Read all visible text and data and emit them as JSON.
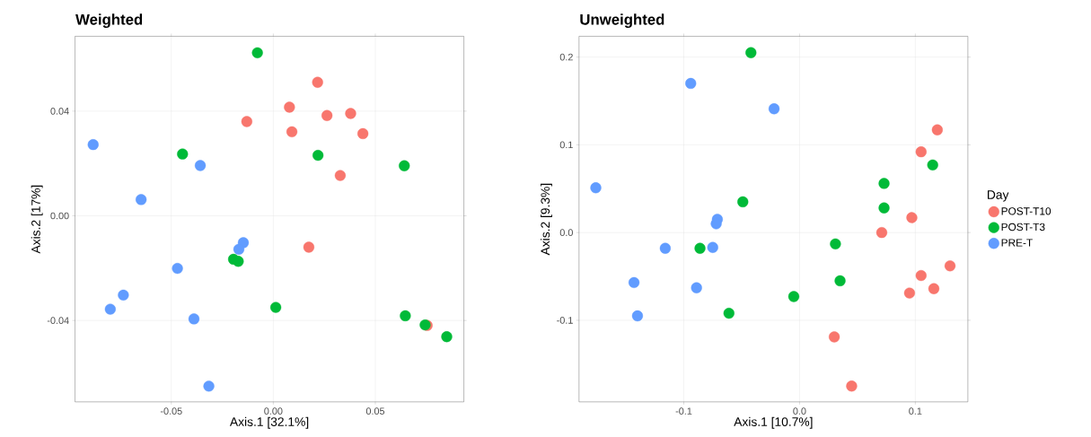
{
  "chart_data": [
    {
      "type": "scatter",
      "title": "Weighted",
      "xlabel": "Axis.1   [32.1%]",
      "ylabel": "Axis.2   [17%]",
      "marker": "circle",
      "grid": true,
      "legend": false,
      "xlim": [
        -0.0972,
        0.0934
      ],
      "ylim": [
        -0.0711,
        0.0686
      ],
      "xticks": [
        -0.05,
        {
          "value": 0,
          "label": "0.00"
        },
        0.05
      ],
      "yticks": [
        -0.04,
        {
          "value": 0,
          "label": "0.00"
        },
        0.04
      ],
      "series": [
        {
          "color": "#f8766d",
          "x": [
            0.0217,
            0.0079,
            -0.013,
            0.0263,
            0.0379,
            0.0091,
            0.0439,
            0.0328,
            0.0174,
            0.0754
          ],
          "values": [
            0.051,
            0.0415,
            0.036,
            0.0383,
            0.0391,
            0.0321,
            0.0314,
            0.0154,
            -0.012,
            -0.0419
          ]
        },
        {
          "color": "#00ba38",
          "x": [
            -0.0078,
            -0.0445,
            0.0219,
            0.0642,
            -0.0195,
            -0.0172,
            0.0012,
            0.0647,
            0.0744,
            0.085
          ],
          "values": [
            0.0623,
            0.0236,
            0.0231,
            0.0191,
            -0.0166,
            -0.0174,
            -0.035,
            -0.0382,
            -0.0417,
            -0.0462
          ]
        },
        {
          "color": "#619cff",
          "x": [
            -0.0883,
            -0.0358,
            -0.0648,
            -0.0147,
            -0.0169,
            -0.047,
            -0.0735,
            -0.0799,
            -0.0389,
            -0.0316
          ],
          "values": [
            0.0272,
            0.0192,
            0.0062,
            -0.0103,
            -0.0128,
            -0.0201,
            -0.0303,
            -0.0357,
            -0.0394,
            -0.0651
          ]
        }
      ]
    },
    {
      "type": "scatter",
      "title": "Unweighted",
      "xlabel": "Axis.1   [10.7%]",
      "ylabel": "Axis.2   [9.3%]",
      "legend_title": "Day",
      "marker": "circle",
      "grid": true,
      "legend": "right",
      "xlim": [
        -0.1905,
        0.1454
      ],
      "ylim": [
        -0.193,
        0.2237
      ],
      "xticks": [
        -0.1,
        {
          "value": 0,
          "label": "0.0"
        },
        0.1
      ],
      "yticks": [
        -0.1,
        {
          "value": 0,
          "label": "0.0"
        },
        0.1,
        0.2
      ],
      "series": [
        {
          "name": "POST-T10",
          "color": "#f8766d",
          "x": [
            0.119,
            0.105,
            0.097,
            0.071,
            0.13,
            0.105,
            0.116,
            0.095,
            0.03,
            0.045
          ],
          "values": [
            0.117,
            0.092,
            0.017,
            0.0,
            -0.038,
            -0.049,
            -0.064,
            -0.069,
            -0.119,
            -0.175
          ]
        },
        {
          "name": "POST-T3",
          "color": "#00ba38",
          "x": [
            -0.042,
            0.115,
            0.073,
            0.073,
            -0.049,
            -0.086,
            0.031,
            0.035,
            -0.005,
            -0.061
          ],
          "values": [
            0.205,
            0.077,
            0.056,
            0.028,
            0.035,
            -0.018,
            -0.013,
            -0.055,
            -0.073,
            -0.092
          ]
        },
        {
          "name": "PRE-T",
          "color": "#619cff",
          "x": [
            -0.094,
            -0.022,
            -0.176,
            -0.071,
            -0.072,
            -0.116,
            -0.075,
            -0.143,
            -0.089,
            -0.14
          ],
          "values": [
            0.17,
            0.141,
            0.051,
            0.015,
            0.01,
            -0.018,
            -0.017,
            -0.057,
            -0.063,
            -0.095
          ]
        }
      ]
    }
  ]
}
